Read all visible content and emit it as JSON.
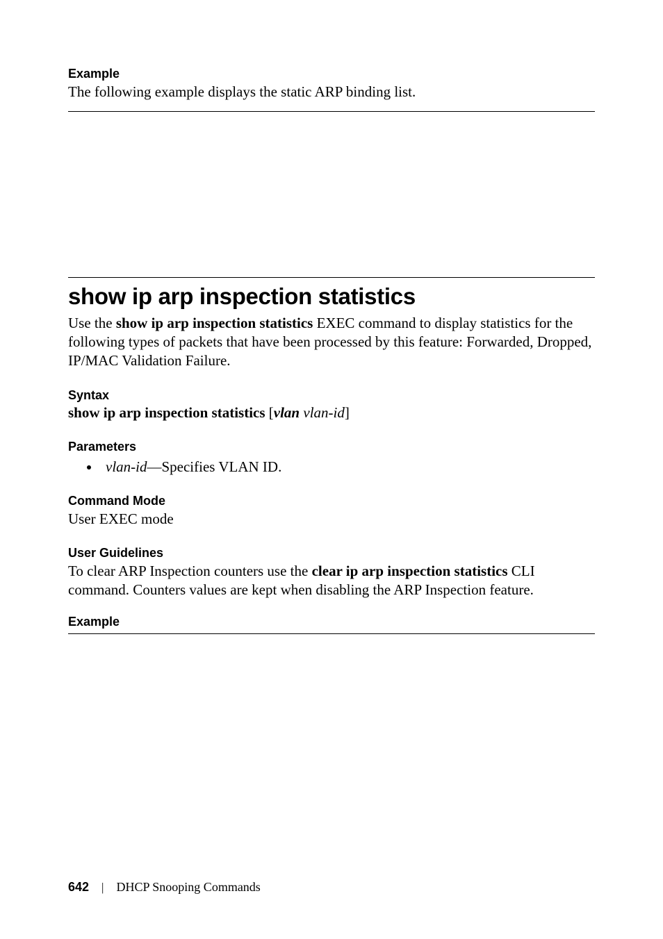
{
  "example1": {
    "heading": "Example",
    "text": "The following example displays the static ARP binding list."
  },
  "command": {
    "title": "show ip arp inspection statistics",
    "intro_pre": "Use the ",
    "intro_bold": "show ip arp inspection statistics",
    "intro_post": " EXEC command to display statistics for the following types of packets that have been processed by this feature: Forwarded, Dropped, IP/MAC Validation Failure."
  },
  "syntax": {
    "heading": "Syntax",
    "line_plain1": "show ip arp inspection statistics",
    "line_open": " [",
    "line_bolditalic": "vlan",
    "line_space": " ",
    "line_italic": "vlan-id",
    "line_close": "]"
  },
  "parameters": {
    "heading": "Parameters",
    "item_italic": "vlan-id",
    "item_rest": "—Specifies VLAN ID."
  },
  "commandmode": {
    "heading": "Command Mode",
    "text": "User EXEC mode"
  },
  "userguidelines": {
    "heading": "User Guidelines",
    "pre": "To clear ARP Inspection counters use the ",
    "bold": "clear ip arp inspection statistics",
    "post": " CLI command. Counters values are kept when disabling the ARP Inspection feature."
  },
  "example2": {
    "heading": "Example"
  },
  "footer": {
    "page": "642",
    "separator": "|",
    "chapter": "DHCP Snooping Commands"
  }
}
